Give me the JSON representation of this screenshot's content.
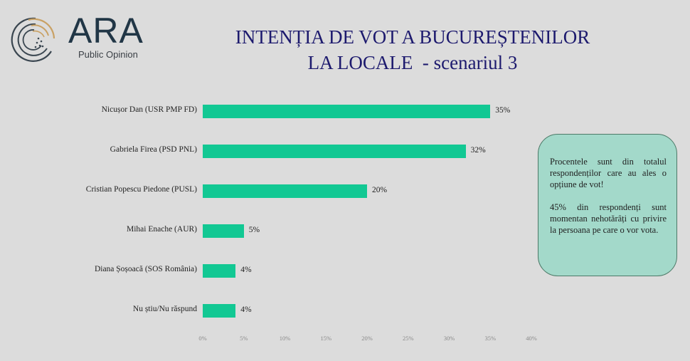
{
  "logo": {
    "name": "ARA",
    "subtitle": "Public Opinion",
    "colors": {
      "primary": "#213646",
      "accent": "#c9a164"
    }
  },
  "title": {
    "line1": "INTENȚIA DE VOT A BUCUREȘTENILOR",
    "line2": "LA LOCALE  - scenariul 3"
  },
  "note": {
    "paragraph1": "Procentele sunt din totalul respondenților care au ales o opțiune de vot!",
    "paragraph2": "45% din respondenți sunt momentan nehotărâți cu privire la persoana pe care o vor vota."
  },
  "chart_data": {
    "type": "bar",
    "orientation": "horizontal",
    "title": "INTENȚIA DE VOT A BUCUREȘTENILOR LA LOCALE - scenariul 3",
    "categories": [
      "Nicușor Dan (USR PMP FD)",
      "Gabriela Firea (PSD PNL)",
      "Cristian Popescu Piedone (PUSL)",
      "Mihai Enache (AUR)",
      "Diana Șoșoacă (SOS România)",
      "Nu știu/Nu răspund"
    ],
    "values": [
      35,
      32,
      20,
      5,
      4,
      4
    ],
    "value_labels": [
      "35%",
      "32%",
      "20%",
      "5%",
      "4%",
      "4%"
    ],
    "xlabel": "",
    "ylabel": "",
    "xlim": [
      0,
      40
    ],
    "x_ticks": [
      "0%",
      "5%",
      "10%",
      "15%",
      "20%",
      "25%",
      "30%",
      "35%",
      "40%"
    ],
    "grid": false,
    "legend": null,
    "bar_color": "#12c893"
  }
}
